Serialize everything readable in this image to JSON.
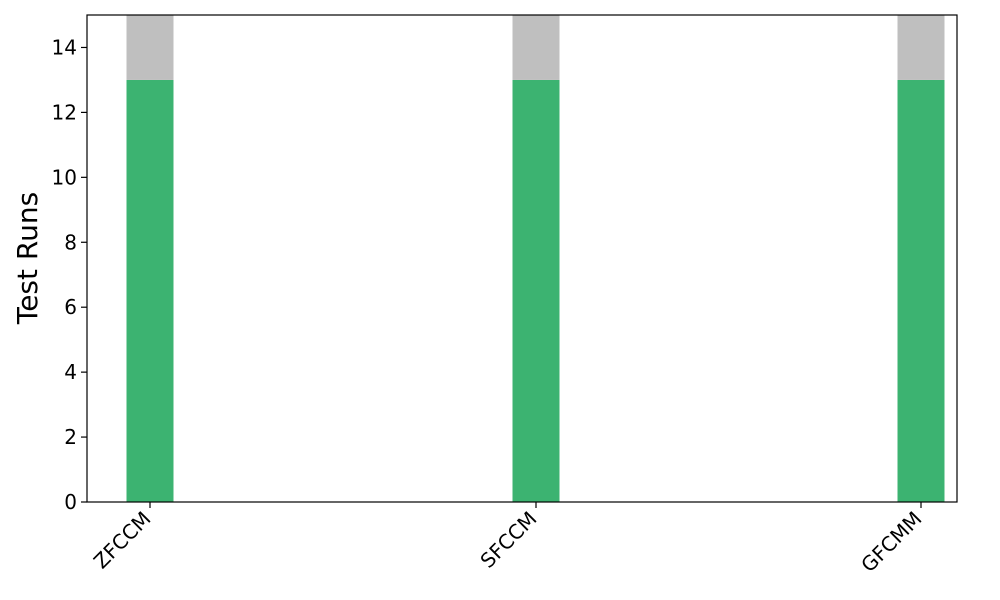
{
  "chart_data": {
    "type": "bar",
    "stacked": true,
    "categories": [
      "ZFCCM",
      "SFCCM",
      "GFCMM"
    ],
    "series": [
      {
        "values": [
          13,
          13,
          13
        ],
        "color": "#3cb371"
      },
      {
        "values": [
          2,
          2,
          2
        ],
        "color": "#bfbfbf"
      }
    ],
    "xlabel": "",
    "ylabel": "Test Runs",
    "ylim": [
      0,
      15
    ],
    "yticks": [
      0,
      2,
      4,
      6,
      8,
      10,
      12,
      14
    ],
    "grid": false,
    "legend": "none"
  }
}
